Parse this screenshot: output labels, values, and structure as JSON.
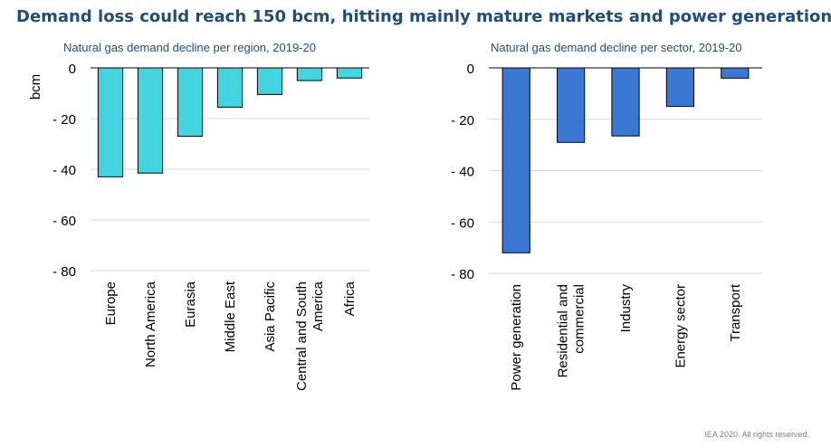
{
  "title": "Demand loss could reach 150 bcm, hitting mainly mature markets and power generation",
  "footer": "IEA 2020. All rights reserved.",
  "chart_data": [
    {
      "type": "bar",
      "title": "Natural gas demand decline per region, 2019-20",
      "ylabel": "bcm",
      "xlabel": "",
      "categories": [
        "Europe",
        "North America",
        "Eurasia",
        "Middle East",
        "Asia Pacific",
        "Central and South America",
        "Africa"
      ],
      "category_lines": [
        [
          "Europe"
        ],
        [
          "North America"
        ],
        [
          "Eurasia"
        ],
        [
          "Middle East"
        ],
        [
          "Asia Pacific"
        ],
        [
          "Central and South",
          "America"
        ],
        [
          "Africa"
        ]
      ],
      "values": [
        -43,
        -41.5,
        -27,
        -15.5,
        -10.5,
        -5,
        -4
      ],
      "ylim": [
        -80,
        0
      ],
      "yticks": [
        0,
        -20,
        -40,
        -60,
        -80
      ],
      "ytick_labels": [
        "0",
        "- 20",
        "- 40",
        "- 60",
        "- 80"
      ],
      "bar_color": "#43d4e0",
      "grid": true
    },
    {
      "type": "bar",
      "title": "Natural gas demand decline per sector, 2019-20",
      "ylabel": "",
      "xlabel": "",
      "categories": [
        "Power generation",
        "Residential and commercial",
        "Industry",
        "Energy sector",
        "Transport"
      ],
      "category_lines": [
        [
          "Power generation"
        ],
        [
          "Residential and",
          "commercial"
        ],
        [
          "Industry"
        ],
        [
          "Energy sector"
        ],
        [
          "Transport"
        ]
      ],
      "values": [
        -72,
        -29,
        -26.5,
        -15,
        -4
      ],
      "ylim": [
        -80,
        0
      ],
      "yticks": [
        0,
        -20,
        -40,
        -60,
        -80
      ],
      "ytick_labels": [
        "0",
        "- 20",
        "- 40",
        "- 60",
        "- 80"
      ],
      "bar_color": "#3a78d4",
      "grid": true
    }
  ]
}
